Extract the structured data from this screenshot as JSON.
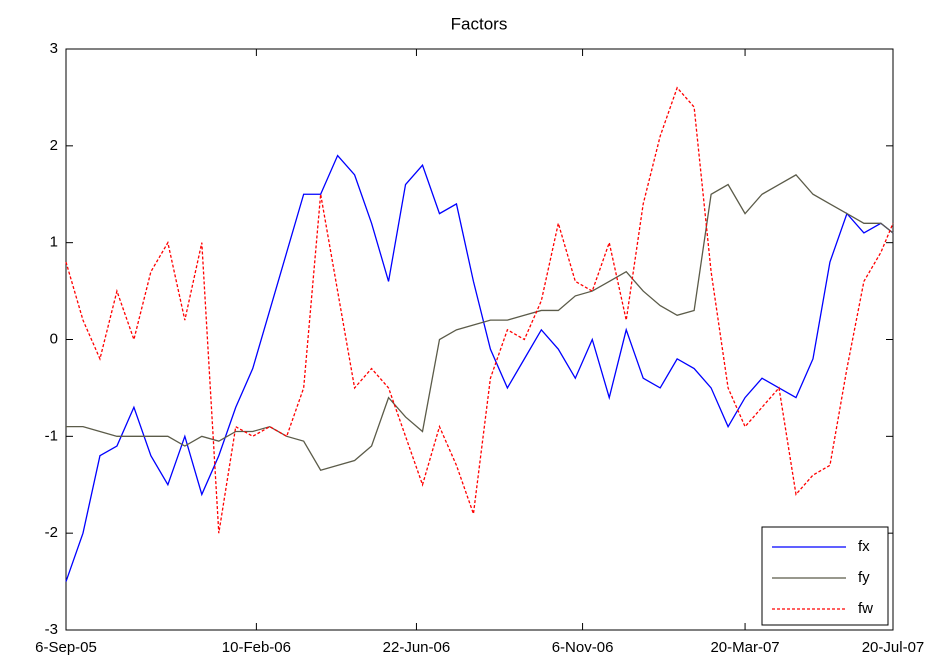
{
  "chart_data": {
    "type": "line",
    "title": "Factors",
    "x": [
      "2005-09-06",
      "2005-09-20",
      "2005-10-04",
      "2005-10-18",
      "2005-11-01",
      "2005-11-15",
      "2005-11-29",
      "2005-12-13",
      "2005-12-27",
      "2006-01-10",
      "2006-01-24",
      "2006-02-07",
      "2006-02-21",
      "2006-03-07",
      "2006-03-21",
      "2006-04-04",
      "2006-04-18",
      "2006-05-02",
      "2006-05-16",
      "2006-05-30",
      "2006-06-13",
      "2006-06-27",
      "2006-07-11",
      "2006-07-25",
      "2006-08-08",
      "2006-08-22",
      "2006-09-05",
      "2006-09-19",
      "2006-10-03",
      "2006-10-17",
      "2006-10-31",
      "2006-11-14",
      "2006-11-28",
      "2006-12-12",
      "2006-12-26",
      "2007-01-09",
      "2007-01-23",
      "2007-02-06",
      "2007-02-20",
      "2007-03-06",
      "2007-03-20",
      "2007-04-03",
      "2007-04-17",
      "2007-05-01",
      "2007-05-15",
      "2007-05-29",
      "2007-06-12",
      "2007-06-26",
      "2007-07-10",
      "2007-07-20"
    ],
    "series": [
      {
        "name": "fx",
        "color": "#0000ff",
        "dash": false,
        "values": [
          -2.5,
          -2.0,
          -1.2,
          -1.1,
          -0.7,
          -1.2,
          -1.5,
          -1.0,
          -1.6,
          -1.2,
          -0.7,
          -0.3,
          0.3,
          0.9,
          1.5,
          1.5,
          1.9,
          1.7,
          1.2,
          0.6,
          1.6,
          1.8,
          1.3,
          1.4,
          0.6,
          -0.1,
          -0.5,
          -0.2,
          0.1,
          -0.1,
          -0.4,
          0.0,
          -0.6,
          0.1,
          -0.4,
          -0.5,
          -0.2,
          -0.3,
          -0.5,
          -0.9,
          -0.6,
          -0.4,
          -0.5,
          -0.6,
          -0.2,
          0.8,
          1.3,
          1.1,
          1.2,
          1.1
        ]
      },
      {
        "name": "fy",
        "color": "#5b5b49",
        "dash": false,
        "values": [
          -0.9,
          -0.9,
          -0.95,
          -1.0,
          -1.0,
          -1.0,
          -1.0,
          -1.1,
          -1.0,
          -1.05,
          -0.95,
          -0.95,
          -0.9,
          -1.0,
          -1.05,
          -1.35,
          -1.3,
          -1.25,
          -1.1,
          -0.6,
          -0.8,
          -0.95,
          0.0,
          0.1,
          0.15,
          0.2,
          0.2,
          0.25,
          0.3,
          0.3,
          0.45,
          0.5,
          0.6,
          0.7,
          0.5,
          0.35,
          0.25,
          0.3,
          1.5,
          1.6,
          1.3,
          1.5,
          1.6,
          1.7,
          1.5,
          1.4,
          1.3,
          1.2,
          1.2,
          1.1
        ]
      },
      {
        "name": "fw",
        "color": "#ff0000",
        "dash": true,
        "values": [
          0.8,
          0.2,
          -0.2,
          0.5,
          0.0,
          0.7,
          1.0,
          0.2,
          1.0,
          -2.0,
          -0.9,
          -1.0,
          -0.9,
          -1.0,
          -0.5,
          1.5,
          0.5,
          -0.5,
          -0.3,
          -0.5,
          -1.0,
          -1.5,
          -0.9,
          -1.3,
          -1.8,
          -0.4,
          0.1,
          0.0,
          0.4,
          1.2,
          0.6,
          0.5,
          1.0,
          0.2,
          1.4,
          2.1,
          2.6,
          2.4,
          0.7,
          -0.5,
          -0.9,
          -0.7,
          -0.5,
          -1.6,
          -1.4,
          -1.3,
          -0.3,
          0.6,
          0.9,
          1.2
        ]
      }
    ],
    "xlim": [
      "2005-09-06",
      "2007-07-20"
    ],
    "xticks": [
      {
        "value": "2005-09-06",
        "label": "6-Sep-05"
      },
      {
        "value": "2006-02-10",
        "label": "10-Feb-06"
      },
      {
        "value": "2006-06-22",
        "label": "22-Jun-06"
      },
      {
        "value": "2006-11-06",
        "label": "6-Nov-06"
      },
      {
        "value": "2007-03-20",
        "label": "20-Mar-07"
      },
      {
        "value": "2007-07-20",
        "label": "20-Jul-07"
      }
    ],
    "ylim": [
      -3,
      3
    ],
    "yticks": [
      -3,
      -2,
      -1,
      0,
      1,
      2,
      3
    ],
    "grid": false,
    "legend": "lower right"
  }
}
